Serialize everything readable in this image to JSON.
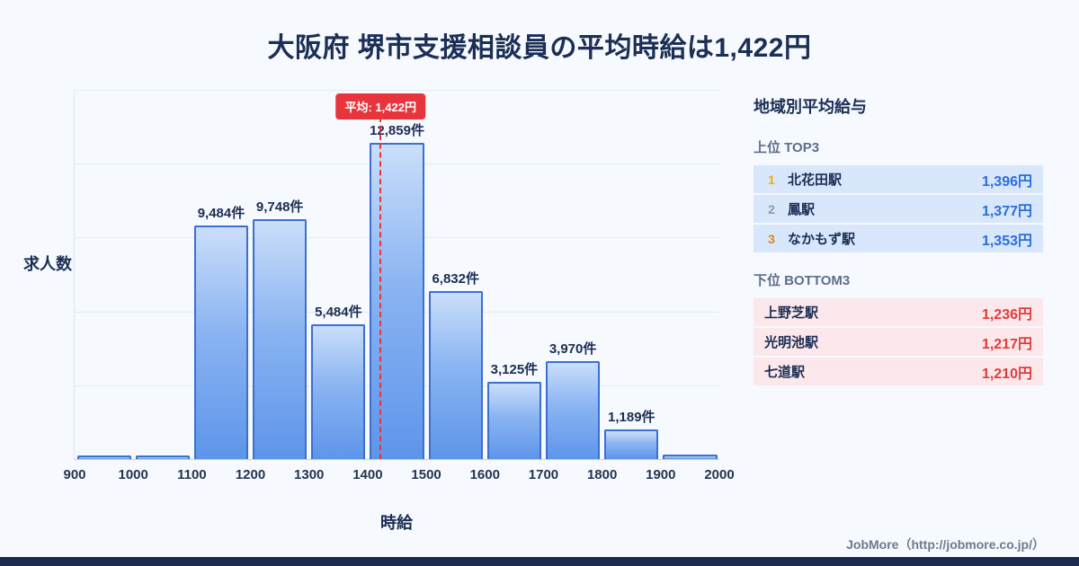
{
  "page": {
    "title": "大阪府 堺市支援相談員の平均時給は1,422円",
    "footer": "JobMore（http://jobmore.co.jp/）"
  },
  "chart_data": {
    "type": "bar",
    "title": "大阪府 堺市支援相談員の平均時給は1,422円",
    "xlabel": "時給",
    "ylabel": "求人数",
    "x_ticks": [
      900,
      1000,
      1100,
      1200,
      1300,
      1400,
      1500,
      1600,
      1700,
      1800,
      1900,
      2000
    ],
    "ylim": [
      0,
      15000
    ],
    "gridline_step": 3000,
    "bins": [
      {
        "range": [
          900,
          1000
        ],
        "value": 150,
        "label": ""
      },
      {
        "range": [
          1000,
          1100
        ],
        "value": 150,
        "label": ""
      },
      {
        "range": [
          1100,
          1200
        ],
        "value": 9484,
        "label": "9,484件"
      },
      {
        "range": [
          1200,
          1300
        ],
        "value": 9748,
        "label": "9,748件"
      },
      {
        "range": [
          1300,
          1400
        ],
        "value": 5484,
        "label": "5,484件"
      },
      {
        "range": [
          1400,
          1500
        ],
        "value": 12859,
        "label": "12,859件"
      },
      {
        "range": [
          1500,
          1600
        ],
        "value": 6832,
        "label": "6,832件"
      },
      {
        "range": [
          1600,
          1700
        ],
        "value": 3125,
        "label": "3,125件"
      },
      {
        "range": [
          1700,
          1800
        ],
        "value": 3970,
        "label": "3,970件"
      },
      {
        "range": [
          1800,
          1900
        ],
        "value": 1189,
        "label": "1,189件"
      },
      {
        "range": [
          1900,
          2000
        ],
        "value": 200,
        "label": ""
      }
    ],
    "average": {
      "value": 1422,
      "label": "平均: 1,422円"
    },
    "legend": "none",
    "grid": "horizontal"
  },
  "side_panel": {
    "title": "地域別平均給与",
    "top": {
      "heading": "上位 TOP3",
      "rows": [
        {
          "rank": "1",
          "station": "北花田駅",
          "salary": "1,396円"
        },
        {
          "rank": "2",
          "station": "鳳駅",
          "salary": "1,377円"
        },
        {
          "rank": "3",
          "station": "なかもず駅",
          "salary": "1,353円"
        }
      ]
    },
    "bottom": {
      "heading": "下位 BOTTOM3",
      "rows": [
        {
          "station": "上野芝駅",
          "salary": "1,236円"
        },
        {
          "station": "光明池駅",
          "salary": "1,217円"
        },
        {
          "station": "七道駅",
          "salary": "1,210円"
        }
      ]
    }
  },
  "colors": {
    "background": "#f6f9fd",
    "navy_text": "#1b2e55",
    "bar_fill_top": "#cadef9",
    "bar_fill_bottom": "#5e95ea",
    "bar_border": "#3b6fd4",
    "average_red": "#e8353c",
    "top_row_bg": "#d8e7fb",
    "top_value_blue": "#2a6de0",
    "bottom_row_bg": "#fce8ea",
    "bottom_value_red": "#e23b3b",
    "rank1_gold": "#f0ac00",
    "rank2_gray": "#8d99ab",
    "rank3_bronze": "#e0861a",
    "bottom_bar_navy": "#1c2b4d"
  }
}
